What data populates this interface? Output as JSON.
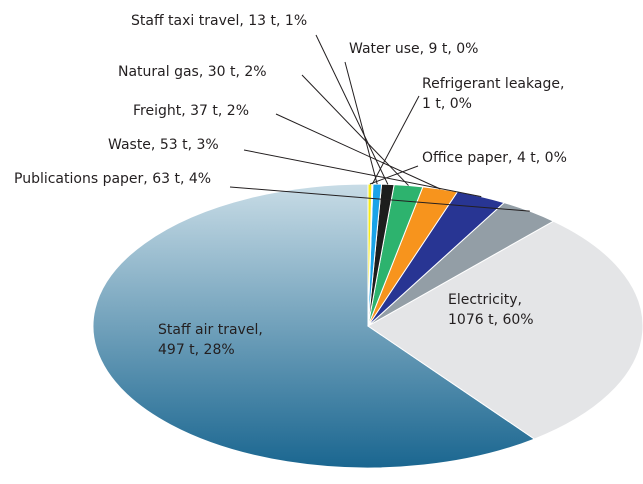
{
  "chart_data": {
    "type": "pie",
    "title": "",
    "unit": "t",
    "slices": [
      {
        "name": "Electricity",
        "value": 1076,
        "percent": 60,
        "color": "gradient:#c8dce6-#1a6690",
        "label_lines": [
          "Electricity,",
          "1076 t, 60%"
        ]
      },
      {
        "name": "Staff air travel",
        "value": 497,
        "percent": 28,
        "color": "#e4e5e7",
        "label_lines": [
          "Staff air travel,",
          "497 t, 28%"
        ]
      },
      {
        "name": "Publications paper",
        "value": 63,
        "percent": 4,
        "color": "#939ea6",
        "label_lines": [
          "Publications paper, 63 t, 4%"
        ]
      },
      {
        "name": "Waste",
        "value": 53,
        "percent": 3,
        "color": "#283593",
        "label_lines": [
          "Waste, 53 t, 3%"
        ]
      },
      {
        "name": "Freight",
        "value": 37,
        "percent": 2,
        "color": "#f7941d",
        "label_lines": [
          "Freight, 37 t, 2%"
        ]
      },
      {
        "name": "Natural gas",
        "value": 30,
        "percent": 2,
        "color": "#2db36e",
        "label_lines": [
          "Natural gas, 30 t, 2%"
        ]
      },
      {
        "name": "Staff taxi travel",
        "value": 13,
        "percent": 1,
        "color": "#1d1d1d",
        "label_lines": [
          "Staff taxi travel, 13 t, 1%"
        ]
      },
      {
        "name": "Water use",
        "value": 9,
        "percent": 0,
        "color": "#1aa3e8",
        "label_lines": [
          "Water use, 9 t, 0%"
        ]
      },
      {
        "name": "Refrigerant leakage",
        "value": 1,
        "percent": 0,
        "color": "#22a86e",
        "label_lines": [
          "Refrigerant leakage,",
          "1 t, 0%"
        ]
      },
      {
        "name": "Office paper",
        "value": 4,
        "percent": 0,
        "color": "#f4ea1c",
        "label_lines": [
          "Office paper, 4 t, 0%"
        ]
      }
    ]
  }
}
